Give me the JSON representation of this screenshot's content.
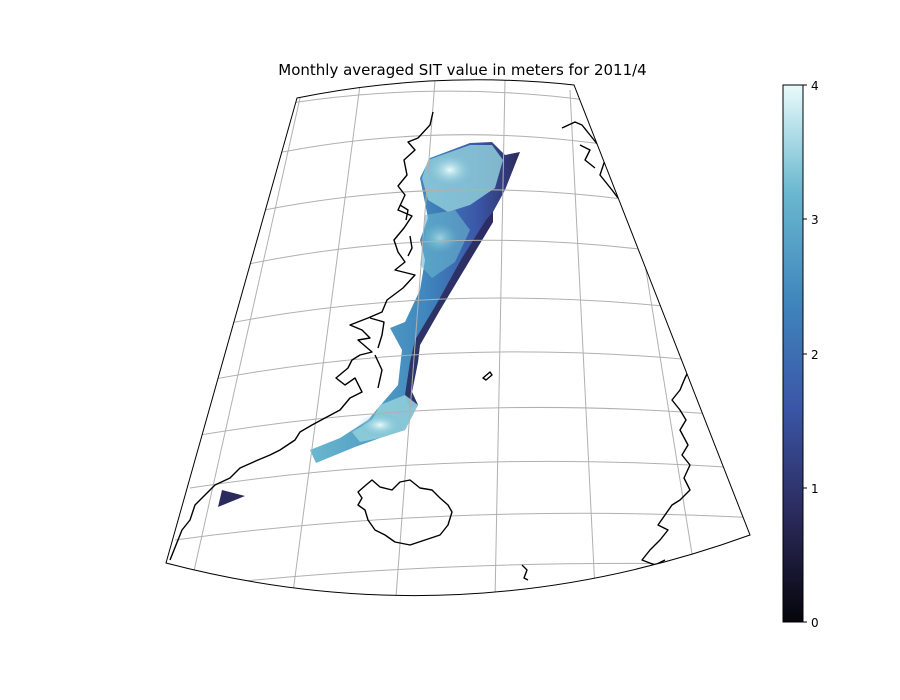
{
  "title": "Monthly averaged SIT value in meters for 2011/4",
  "colorbar": {
    "min": 0,
    "max": 4,
    "ticks": [
      "0",
      "1",
      "2",
      "3",
      "4"
    ],
    "colors": [
      "#05050a",
      "#2b2a5c",
      "#3b56a8",
      "#3f87bd",
      "#6ab8cf",
      "#e9fbfb"
    ]
  },
  "map": {
    "projection": "conic",
    "gridlines": true,
    "grid_color": "#b0b0b0",
    "coastline_color": "#000000",
    "sea_ice_colormap": "ice"
  }
}
